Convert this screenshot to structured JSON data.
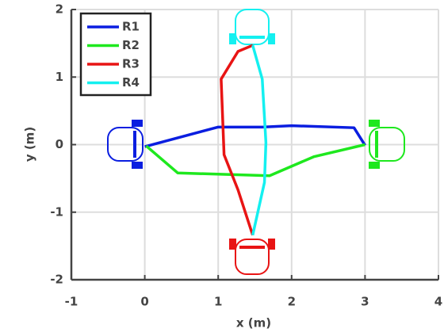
{
  "chart_data": {
    "type": "line",
    "xlabel": "x (m)",
    "ylabel": "y (m)",
    "xlim": [
      -1,
      4
    ],
    "ylim": [
      -2,
      2
    ],
    "xticks": [
      -1,
      0,
      1,
      2,
      3,
      4
    ],
    "yticks": [
      -2,
      -1,
      0,
      1,
      2
    ],
    "grid": true,
    "legend": "upper left",
    "series": [
      {
        "name": "R1",
        "color": "#0a1ee0",
        "x": [
          0,
          1,
          1.6,
          2,
          2.85,
          3
        ],
        "values": [
          -0.03,
          0.26,
          0.26,
          0.28,
          0.25,
          -0.01
        ]
      },
      {
        "name": "R2",
        "color": "#1ee81e",
        "x": [
          3,
          2.3,
          1.7,
          0.45,
          0.02
        ],
        "values": [
          0,
          -0.18,
          -0.46,
          -0.42,
          -0.02
        ]
      },
      {
        "name": "R3",
        "color": "#e81414",
        "x": [
          1.47,
          1.27,
          1.08,
          1.04,
          1.27,
          1.47
        ],
        "values": [
          -1.34,
          -0.67,
          -0.15,
          0.97,
          1.38,
          1.47
        ]
      },
      {
        "name": "R4",
        "color": "#14f0f0",
        "x": [
          1.47,
          1.6,
          1.65,
          1.63,
          1.47
        ],
        "values": [
          1.47,
          0.97,
          0.03,
          -0.56,
          -1.34
        ]
      }
    ]
  }
}
